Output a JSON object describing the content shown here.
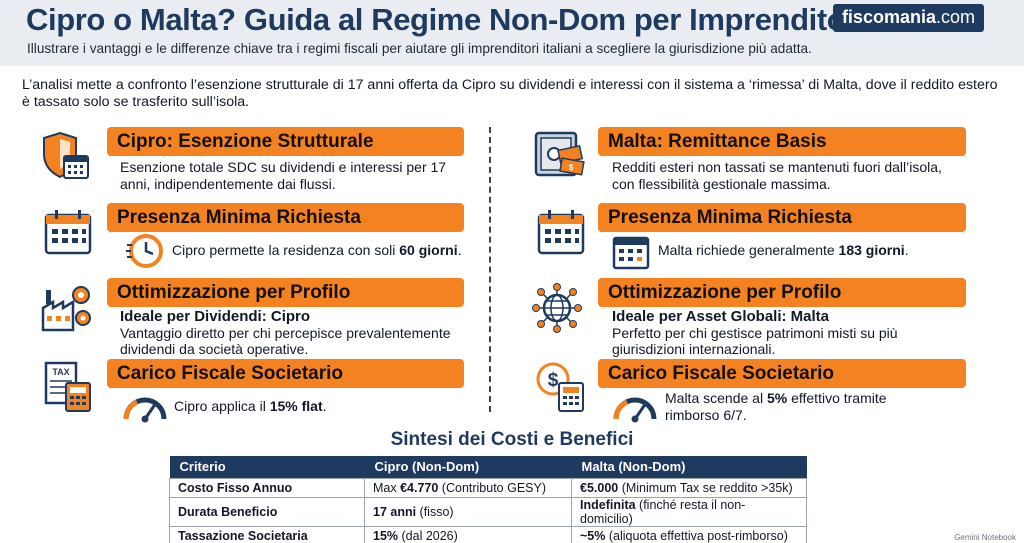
{
  "header": {
    "title": "Cipro o Malta? Guida al Regime Non-Dom per Imprenditori",
    "subtitle": "Illustrare i vantaggi e le differenze chiave tra i regimi fiscali per aiutare gli imprenditori italiani a scegliere la giurisdizione più adatta.",
    "brand_name": "fiscomania",
    "brand_tld": ".com"
  },
  "intro": "L’analisi mette a confronto l’esenzione strutturale di 17 anni offerta da Cipro su dividendi e interessi con il sistema a ‘rimessa’ di Malta, dove il reddito estero è tassato solo se trasferito sull’isola.",
  "colors": {
    "accent": "#f58220",
    "navy": "#1f3a5f",
    "header_bg": "#e9edf2"
  },
  "left": {
    "s1": {
      "title": "Cipro: Esenzione Strutturale",
      "text": "Esenzione totale SDC su dividendi e interessi per 17 anni, indipendentemente dai flussi.",
      "icon": "shield-calendar-icon"
    },
    "s2": {
      "title": "Presenza Minima Richiesta",
      "text_pre": "Cipro permette la residenza con soli ",
      "text_bold": "60 giorni",
      "text_post": ".",
      "icon": "calendar-icon",
      "sub_icon": "clock-icon"
    },
    "s3": {
      "title": "Ottimizzazione per Profilo",
      "strong": "Ideale per Dividendi: Cipro",
      "text": "Vantaggio diretto per chi percepisce prevalentemente dividendi da società operative.",
      "icon": "factory-gear-icon"
    },
    "s4": {
      "title": "Carico Fiscale Societario",
      "text_pre": "Cipro applica il ",
      "text_bold": "15% flat",
      "text_post": ".",
      "icon": "tax-calculator-icon",
      "sub_icon": "gauge-icon"
    }
  },
  "right": {
    "s1": {
      "title": "Malta: Remittance Basis",
      "text": "Redditi esteri non tassati se mantenuti fuori dall’isola, con flessibilità gestionale massima.",
      "icon": "safe-money-icon"
    },
    "s2": {
      "title": "Presenza Minima Richiesta",
      "text_pre": "Malta richiede generalmente ",
      "text_bold": "183 giorni",
      "text_post": ".",
      "icon": "calendar-icon",
      "sub_icon": "calendar-small-icon"
    },
    "s3": {
      "title": "Ottimizzazione per Profilo",
      "strong": "Ideale per Asset Globali: Malta",
      "text": "Perfetto per chi gestisce patrimoni misti su più giurisdizioni internazionali.",
      "icon": "globe-network-icon"
    },
    "s4": {
      "title": "Carico Fiscale Societario",
      "text_pre": "Malta scende al ",
      "text_bold": "5%",
      "text_post": " effettivo tramite rimborso 6/7.",
      "icon": "dollar-calculator-icon",
      "sub_icon": "gauge-icon"
    }
  },
  "table": {
    "title": "Sintesi dei Costi e Benefici",
    "headers": [
      "Criterio",
      "Cipro (Non-Dom)",
      "Malta (Non-Dom)"
    ],
    "rows": [
      {
        "criterion": "Costo Fisso Annuo",
        "cyprus_pre": "Max ",
        "cyprus_bold": "€4.770",
        "cyprus_post": " (Contributo GESY)",
        "malta_bold": "€5.000",
        "malta_post": " (Minimum Tax se reddito >35k)"
      },
      {
        "criterion": "Durata Beneficio",
        "cyprus_pre": "",
        "cyprus_bold": "17 anni",
        "cyprus_post": " (fisso)",
        "malta_bold": "Indefinita",
        "malta_post": " (finché resta il non-domicilio)"
      },
      {
        "criterion": "Tassazione Societaria",
        "cyprus_pre": "",
        "cyprus_bold": "15%",
        "cyprus_post": " (dal 2026)",
        "malta_bold": "~5%",
        "malta_post": " (aliquota effettiva post-rimborso)"
      }
    ]
  },
  "footer": "Gemini Notebook"
}
